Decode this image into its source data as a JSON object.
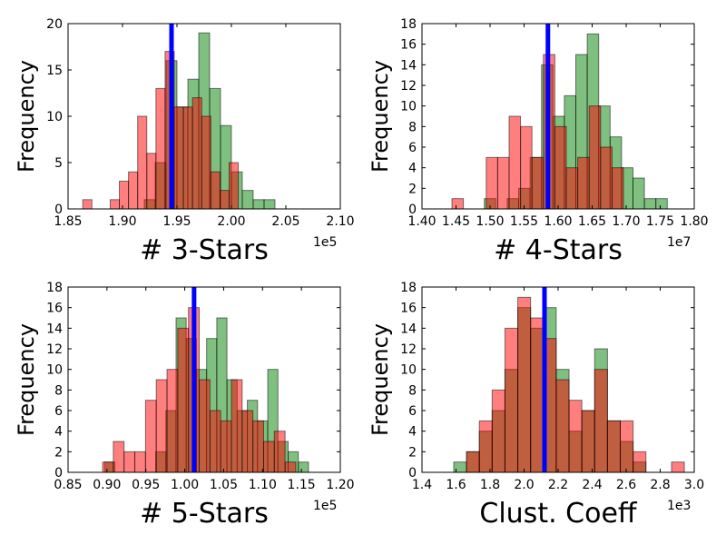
{
  "chart_data": [
    {
      "type": "bar",
      "xlabel": "# 3-Stars",
      "ylabel": "Frequency",
      "x_offset_label": "1e5",
      "xlim": [
        1.85,
        2.1
      ],
      "ylim": [
        0,
        20
      ],
      "xticks": [
        "1.85",
        "1.90",
        "1.95",
        "2.00",
        "2.05",
        "2.10"
      ],
      "yticks": [
        "0",
        "5",
        "10",
        "15",
        "20"
      ],
      "grid": false,
      "reference_line": 1.945,
      "series": [
        {
          "color": "#008000",
          "opacity": 0.5,
          "bin_width": 0.01,
          "bin_left": [
            1.92,
            1.93,
            1.94,
            1.95,
            1.96,
            1.97,
            1.98,
            1.99,
            2.0,
            2.01,
            2.02,
            2.03
          ],
          "values": [
            1,
            5,
            16,
            11,
            14,
            19,
            13,
            9,
            4,
            2,
            1,
            1
          ]
        },
        {
          "color": "#ff0000",
          "opacity": 0.5,
          "bin_width": 0.0084,
          "bin_left": [
            1.8635,
            1.8719,
            1.8803,
            1.8887,
            1.8971,
            1.9055,
            1.9139,
            1.9223,
            1.9307,
            1.9391,
            1.9475,
            1.9559,
            1.9643,
            1.9727,
            1.9811,
            1.9895,
            1.9979
          ],
          "values": [
            1,
            0,
            0,
            1,
            3,
            4,
            10,
            6,
            13,
            17,
            11,
            11,
            12,
            10,
            4,
            2,
            5
          ]
        }
      ]
    },
    {
      "type": "bar",
      "xlabel": "# 4-Stars",
      "ylabel": "Frequency",
      "x_offset_label": "1e7",
      "xlim": [
        1.4,
        1.8
      ],
      "ylim": [
        0,
        18
      ],
      "xticks": [
        "1.40",
        "1.45",
        "1.50",
        "1.55",
        "1.60",
        "1.65",
        "1.70",
        "1.75",
        "1.80"
      ],
      "yticks": [
        "0",
        "2",
        "4",
        "6",
        "8",
        "10",
        "12",
        "14",
        "16",
        "18"
      ],
      "grid": false,
      "reference_line": 1.585,
      "series": [
        {
          "color": "#008000",
          "opacity": 0.5,
          "bin_width": 0.0168,
          "bin_left": [
            1.4916,
            1.5084,
            1.5252,
            1.542,
            1.5588,
            1.5756,
            1.5924,
            1.6092,
            1.626,
            1.6428,
            1.6596,
            1.6764,
            1.6932,
            1.71,
            1.7268,
            1.7436
          ],
          "values": [
            1,
            0,
            1,
            2,
            5,
            14,
            9,
            11,
            15,
            17,
            10,
            7,
            4,
            3,
            1,
            1
          ]
        },
        {
          "color": "#ff0000",
          "opacity": 0.5,
          "bin_width": 0.0168,
          "bin_left": [
            1.444,
            1.4608,
            1.4776,
            1.4944,
            1.5112,
            1.528,
            1.5448,
            1.5616,
            1.5784,
            1.5952,
            1.612,
            1.6288,
            1.6456,
            1.6624,
            1.6792
          ],
          "values": [
            1,
            0,
            0,
            5,
            5,
            9,
            8,
            5,
            15,
            8,
            4,
            5,
            10,
            6,
            4
          ]
        }
      ]
    },
    {
      "type": "bar",
      "xlabel": "# 5-Stars",
      "ylabel": "Frequency",
      "x_offset_label": "1e5",
      "xlim": [
        0.85,
        1.2
      ],
      "ylim": [
        0,
        18
      ],
      "xticks": [
        "0.85",
        "0.90",
        "0.95",
        "1.00",
        "1.05",
        "1.10",
        "1.15",
        "1.20"
      ],
      "yticks": [
        "0",
        "2",
        "4",
        "6",
        "8",
        "10",
        "12",
        "14",
        "16",
        "18"
      ],
      "grid": false,
      "reference_line": 1.012,
      "series": [
        {
          "color": "#008000",
          "opacity": 0.5,
          "bin_width": 0.0131,
          "bin_left": [
            0.8971,
            0.9102,
            0.9233,
            0.9364,
            0.9495,
            0.9626,
            0.9757,
            0.9888,
            1.0019,
            1.015,
            1.0281,
            1.0412,
            1.0543,
            1.0674,
            1.0805,
            1.0936,
            1.1067,
            1.1198,
            1.1329,
            1.146
          ],
          "values": [
            1,
            0,
            0,
            0,
            0,
            2,
            6,
            15,
            13,
            10,
            13,
            15,
            9,
            6,
            7,
            5,
            10,
            3,
            2,
            1
          ]
        },
        {
          "color": "#ff0000",
          "opacity": 0.5,
          "bin_width": 0.0138,
          "bin_left": [
            0.8944,
            0.9082,
            0.922,
            0.9358,
            0.9496,
            0.9634,
            0.9772,
            0.991,
            1.0048,
            1.0186,
            1.0324,
            1.0462,
            1.06,
            1.0738,
            1.0876,
            1.1014,
            1.1152,
            1.129
          ],
          "values": [
            1,
            3,
            2,
            2,
            7,
            9,
            10,
            14,
            16,
            9,
            6,
            5,
            9,
            6,
            5,
            3,
            4,
            1
          ]
        }
      ]
    },
    {
      "type": "bar",
      "xlabel": "Clust. Coeff",
      "ylabel": "Frequency",
      "x_offset_label": "1e3",
      "xlim": [
        1.4,
        3.0
      ],
      "ylim": [
        0,
        18
      ],
      "xticks": [
        "1.4",
        "1.6",
        "1.8",
        "2.0",
        "2.2",
        "2.4",
        "2.6",
        "2.8",
        "3.0"
      ],
      "yticks": [
        "0",
        "2",
        "4",
        "6",
        "8",
        "10",
        "12",
        "14",
        "16",
        "18"
      ],
      "grid": false,
      "reference_line": 2.12,
      "series": [
        {
          "color": "#008000",
          "opacity": 0.5,
          "bin_width": 0.0753,
          "bin_left": [
            1.5865,
            1.6618,
            1.7371,
            1.8124,
            1.8877,
            1.963,
            2.0383,
            2.1136,
            2.1889,
            2.2642,
            2.3395,
            2.4148,
            2.4901,
            2.5654,
            2.6407
          ],
          "values": [
            1,
            2,
            4,
            6,
            10,
            16,
            14,
            16,
            10,
            4,
            6,
            12,
            5,
            3,
            1
          ]
        },
        {
          "color": "#ff0000",
          "opacity": 0.5,
          "bin_width": 0.0753,
          "bin_left": [
            1.6618,
            1.7371,
            1.8124,
            1.8877,
            1.963,
            2.0383,
            2.1136,
            2.1889,
            2.2642,
            2.3395,
            2.4148,
            2.4901,
            2.5654,
            2.6407,
            2.716,
            2.7913,
            2.8666
          ],
          "values": [
            2,
            5,
            8,
            14,
            17,
            15,
            13,
            9,
            7,
            6,
            10,
            5,
            5,
            2,
            0,
            0,
            1
          ]
        }
      ]
    }
  ]
}
